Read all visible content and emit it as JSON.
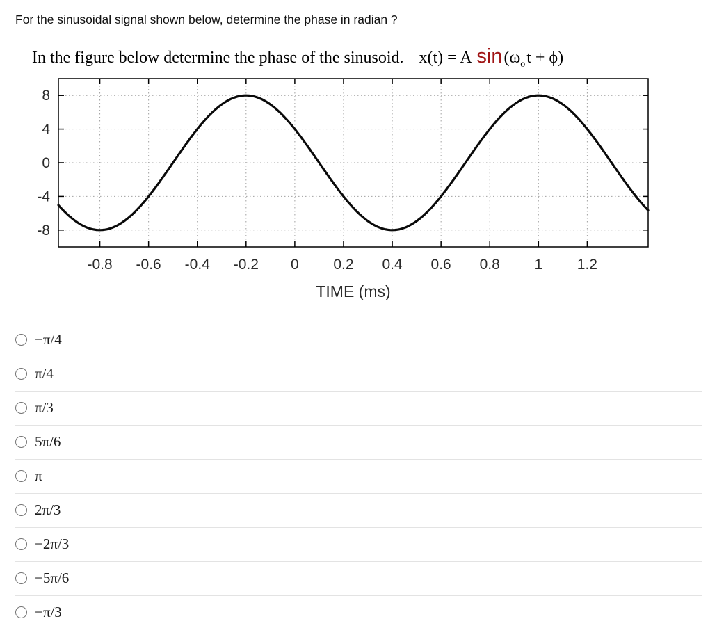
{
  "question": {
    "prompt": "For the sinusoidal signal shown below, determine the phase in radian ?"
  },
  "caption": {
    "text": "In the figure below determine the phase of the sinusoid.",
    "formula": {
      "lhs": "x(t) = A",
      "sin": "sin",
      "omega": "(ω",
      "sub": "o",
      "rest": "t + ϕ)"
    }
  },
  "chart_data": {
    "type": "line",
    "title": "",
    "xlabel": "TIME (ms)",
    "ylabel": "",
    "xlim": [
      -0.97,
      1.45
    ],
    "ylim": [
      -10,
      10
    ],
    "x_ticks": [
      -0.8,
      -0.6,
      -0.4,
      -0.2,
      0,
      0.2,
      0.4,
      0.6,
      0.8,
      1,
      1.2
    ],
    "y_ticks": [
      8,
      4,
      0,
      -4,
      -8
    ],
    "grid": true,
    "legend": "none",
    "series": [
      {
        "name": "x(t)",
        "amplitude": 8,
        "period_ms": 1.2,
        "phase_rad": 2.618,
        "phase_label": "5π/6",
        "color": "#0a0a0a"
      }
    ]
  },
  "options": [
    {
      "label": "−π/4"
    },
    {
      "label": "π/4"
    },
    {
      "label": "π/3"
    },
    {
      "label": "5π/6"
    },
    {
      "label": "π"
    },
    {
      "label": "2π/3"
    },
    {
      "label": "−2π/3"
    },
    {
      "label": "−5π/6"
    },
    {
      "label": "−π/3"
    }
  ]
}
